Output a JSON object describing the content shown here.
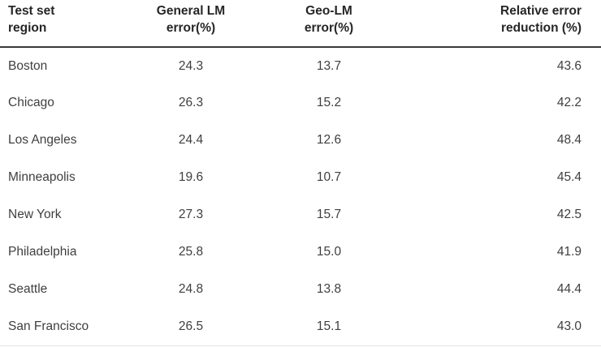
{
  "table": {
    "headers": {
      "region": {
        "line1": "Test set",
        "line2": "region"
      },
      "general_lm": {
        "line1": "General LM",
        "line2": "error(%)"
      },
      "geo_lm": {
        "line1": "Geo-LM",
        "line2": "error(%)"
      },
      "relative": {
        "line1": "Relative error",
        "line2": "reduction (%)"
      }
    },
    "rows": [
      {
        "region": "Boston",
        "general_lm_error": "24.3",
        "geo_lm_error": "13.7",
        "relative_error_reduction": "43.6"
      },
      {
        "region": "Chicago",
        "general_lm_error": "26.3",
        "geo_lm_error": "15.2",
        "relative_error_reduction": "42.2"
      },
      {
        "region": "Los Angeles",
        "general_lm_error": "24.4",
        "geo_lm_error": "12.6",
        "relative_error_reduction": "48.4"
      },
      {
        "region": "Minneapolis",
        "general_lm_error": "19.6",
        "geo_lm_error": "10.7",
        "relative_error_reduction": "45.4"
      },
      {
        "region": "New York",
        "general_lm_error": "27.3",
        "geo_lm_error": "15.7",
        "relative_error_reduction": "42.5"
      },
      {
        "region": "Philadelphia",
        "general_lm_error": "25.8",
        "geo_lm_error": "15.0",
        "relative_error_reduction": "41.9"
      },
      {
        "region": "Seattle",
        "general_lm_error": "24.8",
        "geo_lm_error": "13.8",
        "relative_error_reduction": "44.4"
      },
      {
        "region": "San Francisco",
        "general_lm_error": "26.5",
        "geo_lm_error": "15.1",
        "relative_error_reduction": "43.0"
      }
    ]
  },
  "colors": {
    "background": "#ffffff",
    "header_text": "#262626",
    "body_text": "#3f3f3f",
    "header_border": "#3a3a3a",
    "bottom_border": "#e4e4e4"
  }
}
